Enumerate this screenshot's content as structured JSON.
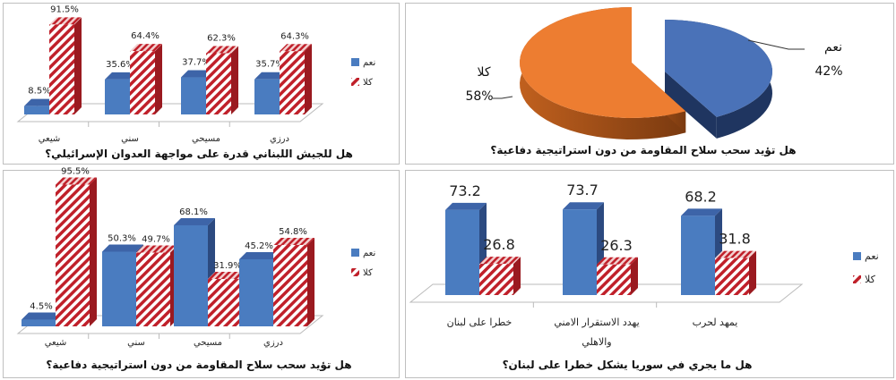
{
  "colors": {
    "yes": "#4a7cc0",
    "no_stripe": "#c0202a",
    "pie_yes": "#4a72b8",
    "pie_no": "#ed7d31",
    "border": "#bfbfbf"
  },
  "chart_data": [
    {
      "type": "bar",
      "title": "هل للجيش اللبناني قدرة على مواجهة العدوان الإسرائيلي؟",
      "categories": [
        "شيعي",
        "سني",
        "مسيحي",
        "درزي"
      ],
      "series": [
        {
          "name": "نعم",
          "values": [
            8.5,
            35.6,
            37.7,
            35.7
          ]
        },
        {
          "name": "كلا",
          "values": [
            91.5,
            64.4,
            62.3,
            64.3
          ]
        }
      ],
      "unit": "%",
      "legend": "right",
      "grid": false
    },
    {
      "type": "pie",
      "title": "هل تؤيد سحب سلاح المقاومة من دون استراتيجية دفاعية؟",
      "slices": [
        {
          "label": "نعم",
          "value": 42,
          "display": "42%"
        },
        {
          "label": "كلا",
          "value": 58,
          "display": "58%"
        }
      ],
      "style": "3d-exploded"
    },
    {
      "type": "bar",
      "title": "هل تؤيد سحب سلاح المقاومة من دون استراتيجية دفاعية؟",
      "categories": [
        "شيعي",
        "سني",
        "مسيحي",
        "درزي"
      ],
      "series": [
        {
          "name": "نعم",
          "values": [
            4.5,
            50.3,
            68.1,
            45.2
          ]
        },
        {
          "name": "كلا",
          "values": [
            95.5,
            49.7,
            31.9,
            54.8
          ]
        }
      ],
      "unit": "%",
      "legend": "right",
      "grid": false
    },
    {
      "type": "bar",
      "title": "هل ما يجري في سوريا يشكل خطرا على لبنان؟",
      "categories": [
        "خطرا على لبنان",
        [
          "يهدد الاستقرار الامني",
          "والاهلي"
        ],
        "يمهد لحرب"
      ],
      "series": [
        {
          "name": "نعم",
          "values": [
            73.2,
            73.7,
            68.2
          ]
        },
        {
          "name": "كلا",
          "values": [
            26.8,
            26.3,
            31.8
          ]
        }
      ],
      "unit": "",
      "legend": "right",
      "grid": false
    }
  ]
}
